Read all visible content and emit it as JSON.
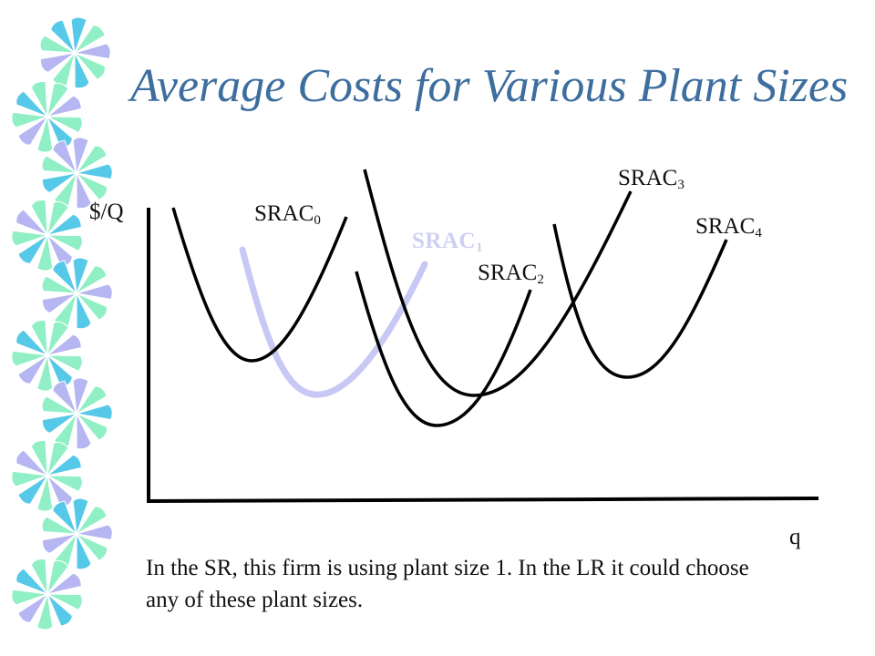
{
  "slide": {
    "title": "Average Costs for Various Plant Sizes",
    "caption": "In the SR, this firm is using plant size 1. In the LR it could choose any of these plant sizes."
  },
  "axes": {
    "y_label": "$/Q",
    "x_label": "q"
  },
  "curves": [
    {
      "base": "SRAC",
      "sub": "0",
      "highlight": false
    },
    {
      "base": "SRAC",
      "sub": "1",
      "highlight": true
    },
    {
      "base": "SRAC",
      "sub": "2",
      "highlight": false
    },
    {
      "base": "SRAC",
      "sub": "3",
      "highlight": false
    },
    {
      "base": "SRAC",
      "sub": "4",
      "highlight": false
    }
  ],
  "colors": {
    "title": "#3d6e9e",
    "curve": "#000000",
    "highlight_curve": "#c8c8f5",
    "decor_cyan": "#57c9e8",
    "decor_green": "#90efc4",
    "decor_lilac": "#b6b6f2"
  },
  "decoration": {
    "icon": "pinwheel-ribbon-icon"
  }
}
